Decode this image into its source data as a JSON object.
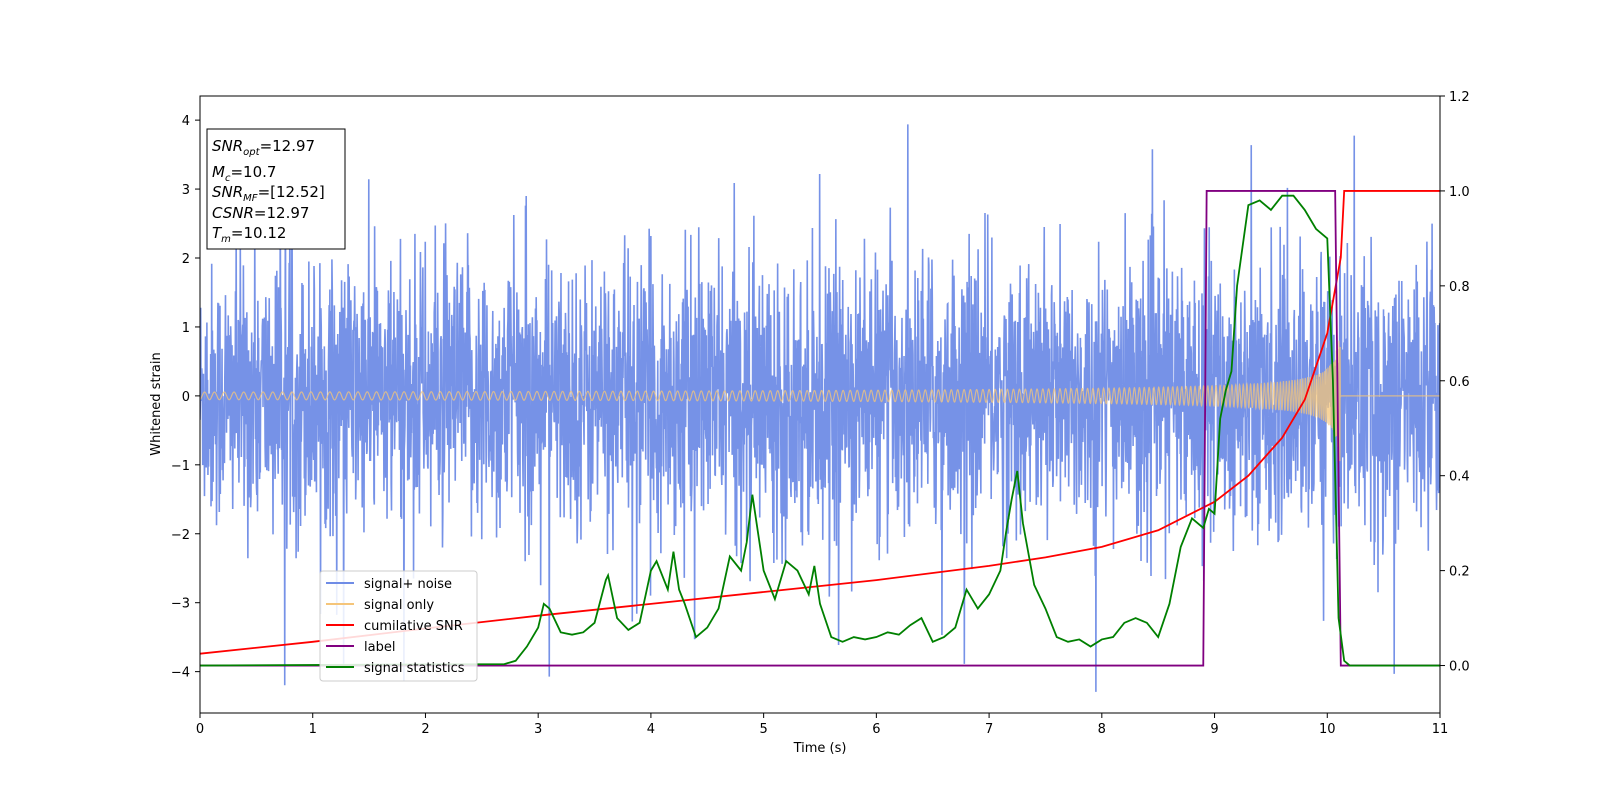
{
  "colors": {
    "noise": "#6f8ce6",
    "signal": "#f5c57a",
    "csnr": "#ff0000",
    "label": "#800080",
    "stat": "#008000"
  },
  "chart_data": {
    "type": "line",
    "xlabel": "Time (s)",
    "ylabel": "Whitened strain",
    "xlim": [
      0,
      11
    ],
    "ylim_left": [
      -4.6,
      4.35
    ],
    "ylim_right": [
      -0.1,
      1.2
    ],
    "x_ticks": [
      "0",
      "1",
      "2",
      "3",
      "4",
      "5",
      "6",
      "7",
      "8",
      "9",
      "10",
      "11"
    ],
    "y_left_ticks": [
      "4",
      "3",
      "2",
      "1",
      "0",
      "−1",
      "−2",
      "−3",
      "−4"
    ],
    "y_right_ticks": [
      "0.0",
      "0.2",
      "0.4",
      "0.6",
      "0.8",
      "1.0",
      "1.2"
    ],
    "legend_placement": "lower-left",
    "annotation": {
      "snr_opt": {
        "label": "SNR",
        "sub": "opt",
        "value": "=12.97"
      },
      "mc": {
        "label": "M",
        "sub": "c",
        "value": "=10.7"
      },
      "snr_mf": {
        "label": "SNR",
        "sub": "MF",
        "value": "=[12.52]"
      },
      "csnr": {
        "label": "CSNR",
        "value": "=12.97"
      },
      "tm": {
        "label": "T",
        "sub": "m",
        "value": "=10.12"
      }
    },
    "series": [
      {
        "name": "signal+ noise",
        "axis": "left",
        "description_amplitude": "noise std ~0.9, spikes to ~4"
      },
      {
        "name": "signal only",
        "axis": "left",
        "chirp_merger_time": 10.12,
        "peak_amplitude": 0.95
      },
      {
        "name": "cumilative SNR",
        "axis": "right",
        "x": [
          0,
          1,
          2,
          3,
          4,
          5,
          6,
          7,
          7.5,
          8,
          8.5,
          9,
          9.3,
          9.6,
          9.8,
          10.0,
          10.12,
          10.15,
          11
        ],
        "y": [
          0.025,
          0.05,
          0.078,
          0.105,
          0.13,
          0.155,
          0.18,
          0.21,
          0.228,
          0.25,
          0.285,
          0.345,
          0.4,
          0.48,
          0.56,
          0.7,
          0.86,
          1.0,
          1.0
        ]
      },
      {
        "name": "label",
        "axis": "right",
        "x": [
          0,
          8.9,
          8.93,
          10.07,
          10.12,
          11
        ],
        "y": [
          0,
          0,
          1,
          1,
          0,
          0
        ]
      },
      {
        "name": "signal statistics",
        "axis": "right",
        "x": [
          0,
          2.7,
          2.8,
          2.9,
          3.0,
          3.05,
          3.1,
          3.2,
          3.3,
          3.4,
          3.5,
          3.6,
          3.62,
          3.7,
          3.8,
          3.9,
          4.0,
          4.05,
          4.15,
          4.2,
          4.25,
          4.3,
          4.4,
          4.5,
          4.6,
          4.7,
          4.8,
          4.85,
          4.9,
          4.95,
          5.0,
          5.1,
          5.2,
          5.3,
          5.4,
          5.45,
          5.5,
          5.6,
          5.7,
          5.8,
          5.9,
          6.0,
          6.1,
          6.2,
          6.3,
          6.4,
          6.5,
          6.6,
          6.7,
          6.8,
          6.9,
          7.0,
          7.1,
          7.15,
          7.2,
          7.25,
          7.3,
          7.4,
          7.5,
          7.6,
          7.7,
          7.8,
          7.9,
          8.0,
          8.1,
          8.2,
          8.3,
          8.4,
          8.5,
          8.6,
          8.7,
          8.8,
          8.9,
          8.95,
          9.0,
          9.05,
          9.1,
          9.15,
          9.2,
          9.3,
          9.4,
          9.5,
          9.6,
          9.7,
          9.8,
          9.9,
          10.0,
          10.05,
          10.1,
          10.15,
          10.2,
          10.3,
          11
        ],
        "y": [
          0.0,
          0.003,
          0.01,
          0.04,
          0.08,
          0.13,
          0.12,
          0.07,
          0.065,
          0.07,
          0.09,
          0.18,
          0.19,
          0.1,
          0.075,
          0.09,
          0.2,
          0.22,
          0.16,
          0.24,
          0.16,
          0.13,
          0.06,
          0.08,
          0.12,
          0.23,
          0.2,
          0.26,
          0.36,
          0.28,
          0.2,
          0.14,
          0.22,
          0.2,
          0.15,
          0.21,
          0.13,
          0.06,
          0.05,
          0.06,
          0.055,
          0.06,
          0.07,
          0.065,
          0.085,
          0.1,
          0.05,
          0.06,
          0.08,
          0.16,
          0.12,
          0.15,
          0.2,
          0.28,
          0.35,
          0.41,
          0.3,
          0.17,
          0.12,
          0.06,
          0.05,
          0.055,
          0.04,
          0.055,
          0.06,
          0.09,
          0.1,
          0.09,
          0.06,
          0.13,
          0.25,
          0.31,
          0.29,
          0.33,
          0.32,
          0.52,
          0.58,
          0.62,
          0.8,
          0.97,
          0.98,
          0.96,
          0.99,
          0.99,
          0.96,
          0.92,
          0.9,
          0.6,
          0.1,
          0.01,
          0.0,
          0.0,
          0.0
        ]
      }
    ]
  }
}
